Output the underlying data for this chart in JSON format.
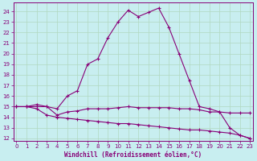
{
  "xlabel": "Windchill (Refroidissement éolien,°C)",
  "background_color": "#c8eef0",
  "grid_color": "#b0d8c0",
  "line_color": "#880077",
  "x": [
    0,
    1,
    2,
    3,
    4,
    5,
    6,
    7,
    8,
    9,
    10,
    11,
    12,
    13,
    14,
    15,
    16,
    17,
    18,
    19,
    20,
    21,
    22,
    23
  ],
  "y_top": [
    15.0,
    15.0,
    15.2,
    15.0,
    14.8,
    16.0,
    16.5,
    19.0,
    19.5,
    21.5,
    23.0,
    24.1,
    23.5,
    23.9,
    24.3,
    22.5,
    20.0,
    17.5,
    15.0,
    14.8,
    14.5,
    13.0,
    12.3,
    12.0
  ],
  "y_mid": [
    15.0,
    15.0,
    15.0,
    15.0,
    14.2,
    14.5,
    14.6,
    14.8,
    14.8,
    14.8,
    14.9,
    15.0,
    14.9,
    14.9,
    14.9,
    14.9,
    14.8,
    14.8,
    14.7,
    14.5,
    14.5,
    14.4,
    14.4,
    14.4
  ],
  "y_bot": [
    15.0,
    15.0,
    14.8,
    14.2,
    14.0,
    13.9,
    13.8,
    13.7,
    13.6,
    13.5,
    13.4,
    13.4,
    13.3,
    13.2,
    13.1,
    13.0,
    12.9,
    12.8,
    12.8,
    12.7,
    12.6,
    12.5,
    12.3,
    12.0
  ],
  "ylim": [
    11.8,
    24.8
  ],
  "xlim": [
    -0.3,
    23.3
  ],
  "yticks": [
    12,
    13,
    14,
    15,
    16,
    17,
    18,
    19,
    20,
    21,
    22,
    23,
    24
  ],
  "xticks": [
    0,
    1,
    2,
    3,
    4,
    5,
    6,
    7,
    8,
    9,
    10,
    11,
    12,
    13,
    14,
    15,
    16,
    17,
    18,
    19,
    20,
    21,
    22,
    23
  ],
  "marker": "+",
  "markersize": 3,
  "linewidth": 0.8,
  "xlabel_fontsize": 5.5,
  "tick_fontsize": 5,
  "tick_color": "#880077",
  "label_color": "#880077",
  "spine_color": "#880077"
}
